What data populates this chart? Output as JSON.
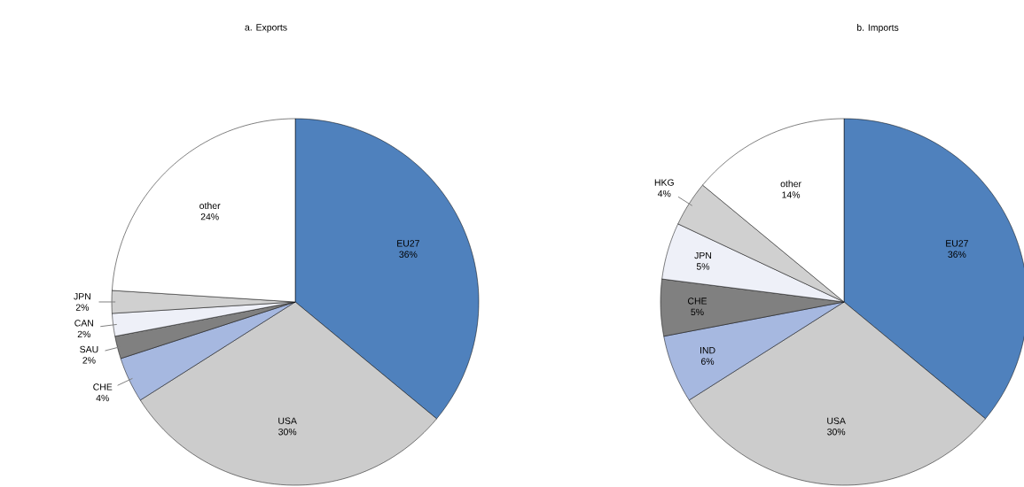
{
  "chart_data": [
    {
      "type": "pie",
      "title": "a.      Exports",
      "categories": [
        "EU27",
        "USA",
        "CHE",
        "SAU",
        "CAN",
        "JPN",
        "other"
      ],
      "values": [
        36,
        30,
        4,
        2,
        2,
        2,
        24
      ],
      "value_labels": [
        "36%",
        "30%",
        "4%",
        "2%",
        "2%",
        "2%",
        "24%"
      ],
      "colors": [
        "#4f81bd",
        "#cccccc",
        "#a6b8e0",
        "#808080",
        "#eef0f8",
        "#d0d0d0",
        "#ffffff"
      ]
    },
    {
      "type": "pie",
      "title": "b.      Imports",
      "categories": [
        "EU27",
        "USA",
        "IND",
        "CHE",
        "JPN",
        "HKG",
        "other"
      ],
      "values": [
        36,
        30,
        6,
        5,
        5,
        4,
        14
      ],
      "value_labels": [
        "36%",
        "30%",
        "6%",
        "5%",
        "5%",
        "4%",
        "14%"
      ],
      "colors": [
        "#4f81bd",
        "#cccccc",
        "#a6b8e0",
        "#808080",
        "#eef0f8",
        "#d0d0d0",
        "#ffffff"
      ]
    }
  ]
}
